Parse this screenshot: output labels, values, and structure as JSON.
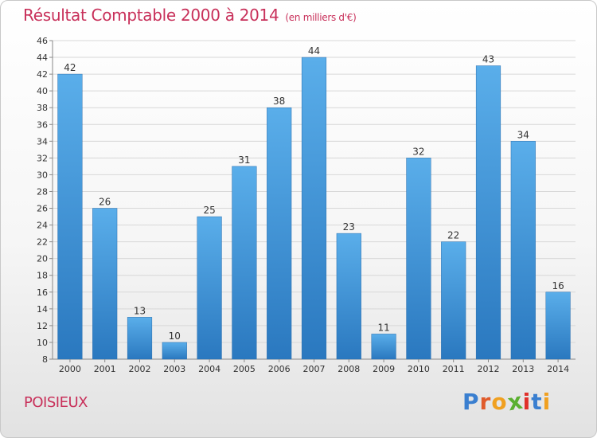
{
  "chart_data": {
    "type": "bar",
    "title": "Résultat Comptable 2000 à 2014",
    "subtitle": "(en milliers d'€)",
    "categories": [
      "2000",
      "2001",
      "2002",
      "2003",
      "2004",
      "2005",
      "2006",
      "2007",
      "2008",
      "2009",
      "2010",
      "2011",
      "2012",
      "2013",
      "2014"
    ],
    "values": [
      42,
      26,
      13,
      10,
      25,
      31,
      38,
      44,
      23,
      11,
      32,
      22,
      43,
      34,
      16
    ],
    "ylim": [
      8,
      46
    ],
    "yticks": [
      8,
      10,
      12,
      14,
      16,
      18,
      20,
      22,
      24,
      26,
      28,
      30,
      32,
      34,
      36,
      38,
      40,
      42,
      44,
      46
    ],
    "xlabel": "",
    "ylabel": "",
    "grid": true,
    "bar_color": "#3a8fd4"
  },
  "footer": {
    "location": "POISIEUX"
  },
  "logo": {
    "letters": [
      {
        "char": "P",
        "color": "#3a7fd0"
      },
      {
        "char": "r",
        "color": "#e05a2a"
      },
      {
        "char": "o",
        "color": "#f0a020"
      },
      {
        "char": "x",
        "color": "#5bb030"
      },
      {
        "char": "i",
        "color": "#e0302a"
      },
      {
        "char": "t",
        "color": "#3a7fd0"
      },
      {
        "char": "i",
        "color": "#f0a020"
      }
    ]
  }
}
